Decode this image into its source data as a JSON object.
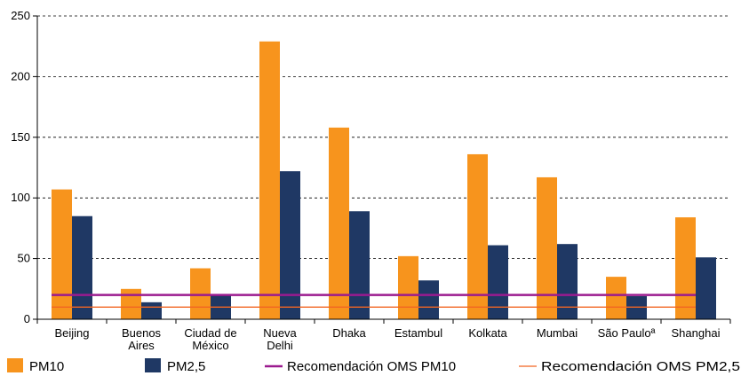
{
  "chart_data": {
    "type": "bar",
    "categories": [
      [
        "Beijing"
      ],
      [
        "Buenos",
        "Aires"
      ],
      [
        "Ciudad de",
        "México"
      ],
      [
        "Nueva",
        "Delhi"
      ],
      [
        "Dhaka"
      ],
      [
        "Estambul"
      ],
      [
        "Kolkata"
      ],
      [
        "Mumbai"
      ],
      [
        "São Pauloª"
      ],
      [
        "Shanghai"
      ]
    ],
    "series": [
      {
        "name": "PM10",
        "color": "#F7941D",
        "values": [
          107,
          25,
          42,
          229,
          158,
          52,
          136,
          117,
          35,
          84
        ]
      },
      {
        "name": "PM2,5",
        "color": "#1F3864",
        "values": [
          85,
          14,
          20,
          122,
          89,
          32,
          61,
          62,
          19,
          51
        ]
      }
    ],
    "reference_lines": [
      {
        "name": "Recomendación OMS PM10",
        "value": 20,
        "color": "#9B1B8F"
      },
      {
        "name": "Recomendación OMS PM2,5",
        "value": 10,
        "color": "#F26522"
      }
    ],
    "ylim": [
      0,
      250
    ],
    "yticks": [
      0,
      50,
      100,
      150,
      200,
      250
    ],
    "grid": "dashed-horizontal",
    "legend_position": "bottom"
  }
}
